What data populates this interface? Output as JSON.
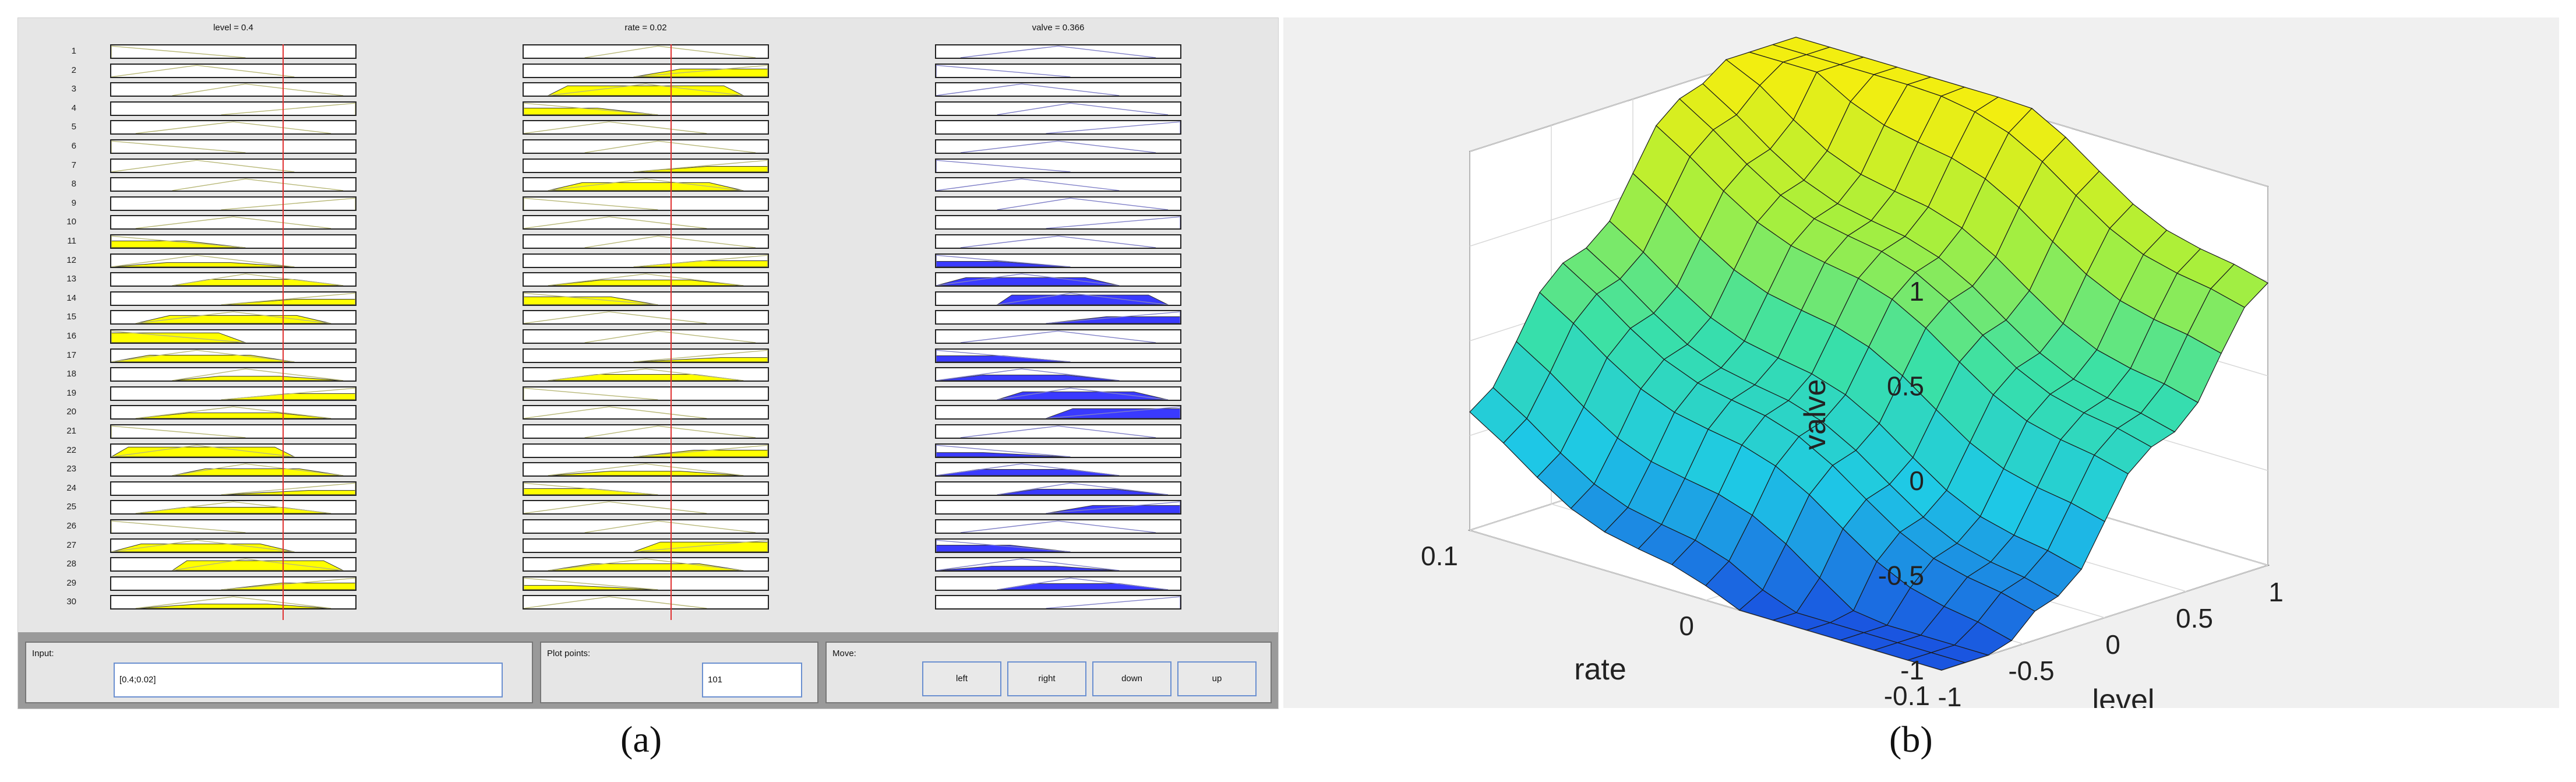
{
  "panel_a": {
    "columns": [
      {
        "title": "level = 0.4",
        "var": "level",
        "value": 0.4,
        "range": [
          -1,
          1
        ],
        "input": true
      },
      {
        "title": "rate = 0.02",
        "var": "rate",
        "value": 0.02,
        "range": [
          -0.1,
          0.1
        ],
        "input": true
      },
      {
        "title": "valve = 0.366",
        "var": "valve",
        "value": 0.366,
        "range": [
          -1,
          1
        ],
        "input": false
      }
    ],
    "rules": [
      "1",
      "2",
      "3",
      "4",
      "5",
      "6",
      "7",
      "8",
      "9",
      "10",
      "11",
      "12",
      "13",
      "14",
      "15",
      "16",
      "17",
      "18",
      "19",
      "20",
      "21",
      "22",
      "23",
      "24",
      "25",
      "26",
      "27",
      "28",
      "29",
      "30"
    ],
    "controls": {
      "input_label": "Input:",
      "input_value": "[0.4;0.02]",
      "plot_points_label": "Plot points:",
      "plot_points_value": "101",
      "move_label": "Move:",
      "buttons": [
        "left",
        "right",
        "down",
        "up"
      ]
    },
    "colors": {
      "input_fill": "#ffff00",
      "output_fill": "#3a3aff",
      "crosshair": "#e03030"
    }
  },
  "panel_b": {
    "chart_data": {
      "type": "surface",
      "zlabel": "valve",
      "xlabel": "rate",
      "ylabel": "level",
      "x_ticks": [
        "0.1",
        "0",
        "-0.1"
      ],
      "y_ticks": [
        "-1",
        "-0.5",
        "0",
        "0.5",
        "1"
      ],
      "z_ticks": [
        "1",
        "0.5",
        "0",
        "-0.5",
        "-1"
      ],
      "xlim": [
        -0.1,
        0.1
      ],
      "ylim": [
        -1,
        1
      ],
      "zlim": [
        -1,
        1
      ],
      "colormap": [
        "#1a55e0",
        "#1ec8e6",
        "#39e0a8",
        "#a8ef3c",
        "#f2ee10"
      ]
    }
  },
  "captions": {
    "a": "(a)",
    "b": "(b)"
  }
}
